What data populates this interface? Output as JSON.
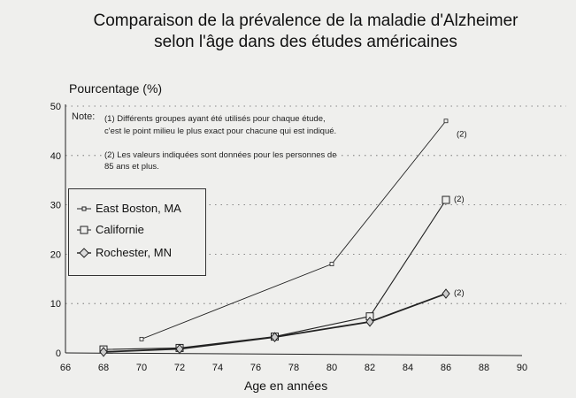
{
  "chart_data": {
    "type": "line",
    "title": "Comparaison de la prévalence de la maladie d'Alzheimer selon l'âge dans des études américaines",
    "title_lines": [
      "Comparaison de la prévalence de la maladie d'Alzheimer",
      "selon l'âge dans des études américaines"
    ],
    "xlabel": "Age en années",
    "ylabel": "Pourcentage (%)",
    "xlim": [
      66,
      90
    ],
    "ylim": [
      0,
      50
    ],
    "x_ticks": [
      66,
      68,
      70,
      72,
      74,
      76,
      78,
      80,
      82,
      84,
      86,
      88,
      90
    ],
    "y_ticks": [
      0,
      10,
      20,
      30,
      40,
      50
    ],
    "grid": "horizontal dotted",
    "legend_position": "left middle",
    "series": [
      {
        "name": "East Boston, MA",
        "marker": "small-square",
        "x": [
          70,
          80,
          86
        ],
        "values": [
          2.8,
          18,
          47
        ]
      },
      {
        "name": "Californie",
        "marker": "square",
        "x": [
          68,
          72,
          77,
          82,
          86
        ],
        "values": [
          0.7,
          1,
          3.3,
          7.4,
          31
        ]
      },
      {
        "name": "Rochester, MN",
        "marker": "diamond",
        "x": [
          68,
          72,
          77,
          82,
          86
        ],
        "values": [
          0.2,
          0.8,
          3.2,
          6.3,
          12
        ]
      }
    ],
    "annotations": [
      "(2)",
      "(2)",
      "(2)"
    ],
    "notes": {
      "label": "Note:",
      "n1_line1": "(1) Différents groupes ayant été utilisés pour chaque étude,",
      "n1_line2": "c'est le point milieu le plus exact pour chacune qui est indiqué.",
      "n2_line1": "(2) Les valeurs indiquées sont données pour les personnes de",
      "n2_line2": "85 ans et plus."
    }
  }
}
